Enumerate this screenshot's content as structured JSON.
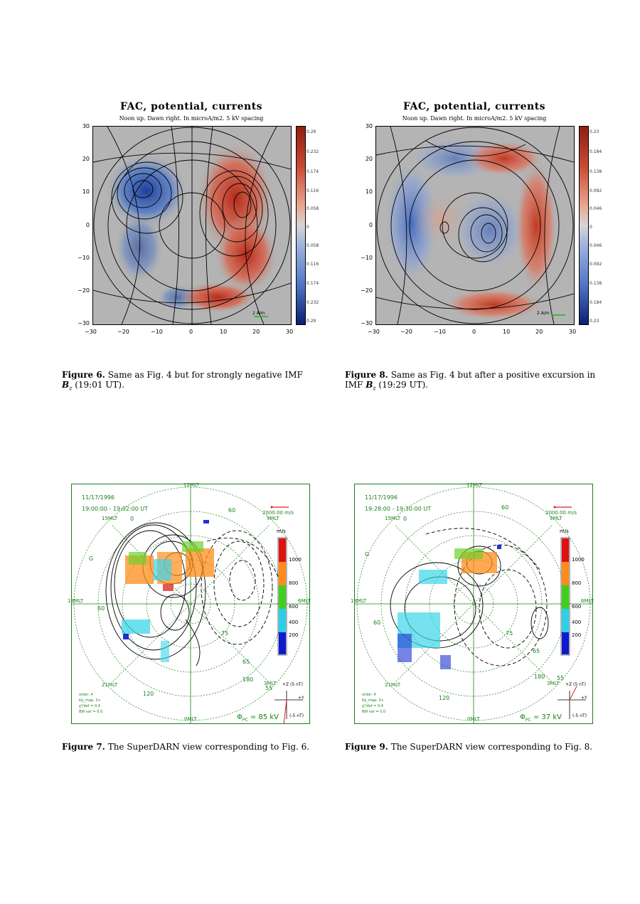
{
  "fig6": {
    "title": "FAC, potential, currents",
    "subtitle": "Noon up. Dawn right. In microA/m2. 5 kV spacing",
    "yticks": [
      "30",
      "20",
      "10",
      "0",
      "−10",
      "−20",
      "−30"
    ],
    "xticks": [
      "−30",
      "−20",
      "−10",
      "0",
      "10",
      "20",
      "30"
    ],
    "colorbar_ticks": [
      "0.29",
      "0.232",
      "0.174",
      "0.116",
      "0.058",
      "0",
      "0.058",
      "0.116",
      "0.174",
      "0.232",
      "0.29"
    ],
    "scale_label": "2 A/m"
  },
  "fig8": {
    "title": "FAC, potential, currents",
    "subtitle": "Noon up. Dawn right. In microA/m2. 5 kV spacing",
    "yticks": [
      "30",
      "20",
      "10",
      "0",
      "−10",
      "−20",
      "−30"
    ],
    "xticks": [
      "−30",
      "−20",
      "−10",
      "0",
      "10",
      "20",
      "30"
    ],
    "colorbar_ticks": [
      "0.23",
      "0.184",
      "0.138",
      "0.092",
      "0.046",
      "0",
      "0.046",
      "0.092",
      "0.138",
      "0.184",
      "0.23"
    ],
    "scale_label": "2 A/m"
  },
  "captions": {
    "fig6_label": "Figure 6.",
    "fig6_text": "Same as Fig. 4 but for strongly negative IMF",
    "fig6_line2": "(19:01 UT).",
    "fig8_label": "Figure 8.",
    "fig8_text": "Same as Fig. 4 but after a positive excursion in",
    "fig8_line2a": "IMF",
    "fig8_line2b": "(19:29 UT).",
    "bz": "B",
    "bz_sub": "z",
    "fig7_label": "Figure 7.",
    "fig7_text": "The SuperDARN view corresponding to Fig. 6.",
    "fig9_label": "Figure 9.",
    "fig9_text": "The SuperDARN view corresponding to Fig. 8."
  },
  "fig7": {
    "date": "11/17/1996",
    "time": "19:00:00 - 19:02:00 UT",
    "mlt_labels": [
      "12MLT",
      "15MLT",
      "18MLT",
      "21MLT",
      "0MLT",
      "3MLT",
      "6MLT",
      "9MLT"
    ],
    "lat_labels": [
      "60",
      "60",
      "75",
      "65",
      "55"
    ],
    "lon_labels": [
      "120",
      "180",
      "0",
      "G"
    ],
    "vector_scale": "2000.00 m/s",
    "velocity_unit": "m/s",
    "vel_ticks": [
      "1000",
      "800",
      "600",
      "400",
      "200"
    ],
    "imf_label": "+Z (5 nT)",
    "imf_y": "+Y",
    "imf_note": "(-5 nT)",
    "potential": "Φ",
    "potential_sub": "PC",
    "potential_val": "= 85 kV",
    "footer": [
      "order: 4",
      "Kp_map: 3+",
      "χ²/dof = 0.4",
      "BW var = 0.0"
    ]
  },
  "fig9": {
    "date": "11/17/1996",
    "time": "19:28:00 - 19:30:00 UT",
    "mlt_labels": [
      "12MLT",
      "15MLT",
      "18MLT",
      "21MLT",
      "0MLT",
      "3MLT",
      "6MLT",
      "9MLT"
    ],
    "lat_labels": [
      "60",
      "60",
      "75",
      "65",
      "55"
    ],
    "lon_labels": [
      "120",
      "180",
      "0",
      "G"
    ],
    "vector_scale": "2000.00 m/s",
    "velocity_unit": "m/s",
    "vel_ticks": [
      "1000",
      "800",
      "600",
      "400",
      "200"
    ],
    "imf_label": "+Z (5 nT)",
    "imf_y": "+Y",
    "imf_note": "(-5 nT)",
    "potential": "Φ",
    "potential_sub": "PC",
    "potential_val": "= 37 kV",
    "footer": [
      "order: 4",
      "Kp_map: 3+",
      "χ²/dof = 0.4",
      "BW var = 0.0"
    ]
  },
  "colors": {
    "red": "#c0392b",
    "blue": "#2050b0",
    "gray": "#b4b4b4",
    "green_text": "#1a7f1a"
  }
}
